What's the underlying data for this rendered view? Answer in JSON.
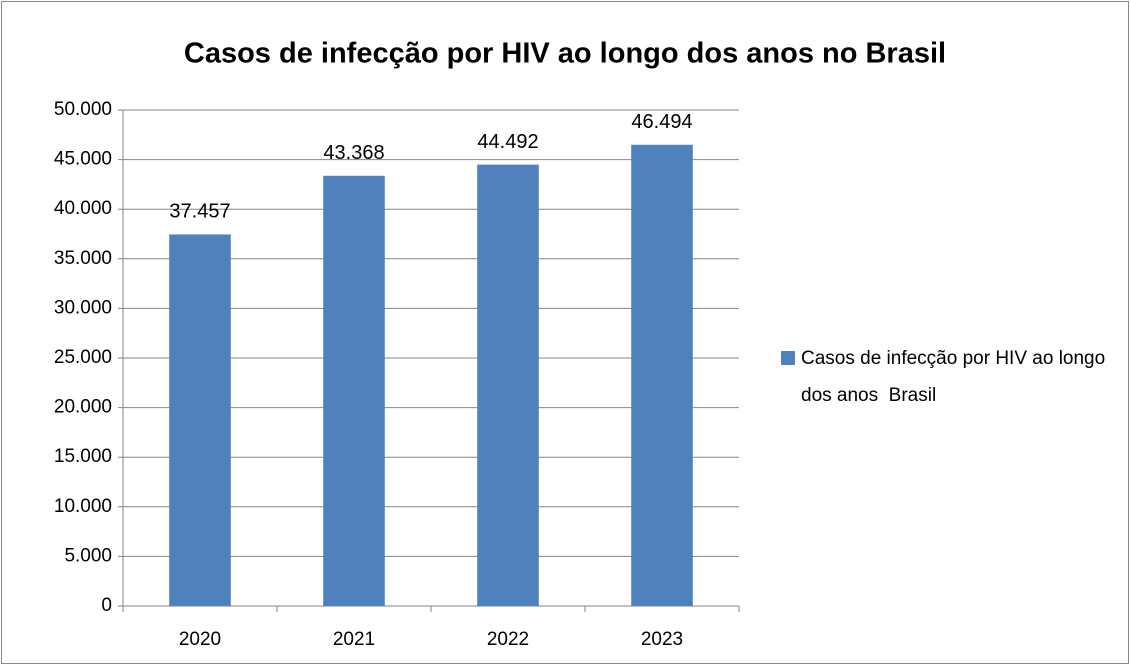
{
  "chart_data": {
    "type": "bar",
    "title": "Casos de infecção por HIV ao longo dos anos no Brasil",
    "categories": [
      "2020",
      "2021",
      "2022",
      "2023"
    ],
    "series": [
      {
        "name": "Casos de infecção por HIV ao longo dos anos  Brasil",
        "color": "#4f81bd",
        "values": [
          37457,
          43368,
          44492,
          46494
        ],
        "value_labels": [
          "37.457",
          "43.368",
          "44.492",
          "46.494"
        ]
      }
    ],
    "ylim": [
      0,
      50000
    ],
    "yticks": [
      0,
      {
        "value": 5000,
        "label": "5.000"
      },
      {
        "value": 10000,
        "label": "10.000"
      },
      {
        "value": 15000,
        "label": "15.000"
      },
      {
        "value": 20000,
        "label": "20.000"
      },
      {
        "value": 25000,
        "label": "25.000"
      },
      {
        "value": 30000,
        "label": "30.000"
      },
      {
        "value": 35000,
        "label": "35.000"
      },
      {
        "value": 40000,
        "label": "40.000"
      },
      {
        "value": 45000,
        "label": "45.000"
      },
      {
        "value": 50000,
        "label": "50.000"
      }
    ],
    "grid": true,
    "legend": "right"
  }
}
